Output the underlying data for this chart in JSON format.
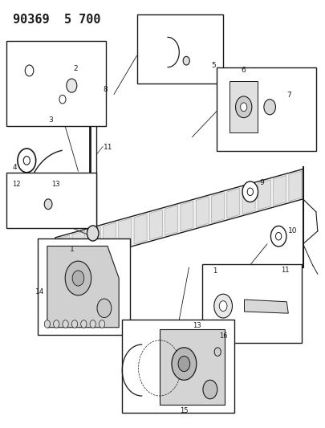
{
  "title": "90369  5 700",
  "bg_color": "#ffffff",
  "line_color": "#1a1a1a",
  "title_fontsize": 11,
  "fig_width": 4.06,
  "fig_height": 5.33,
  "dpi": 100
}
